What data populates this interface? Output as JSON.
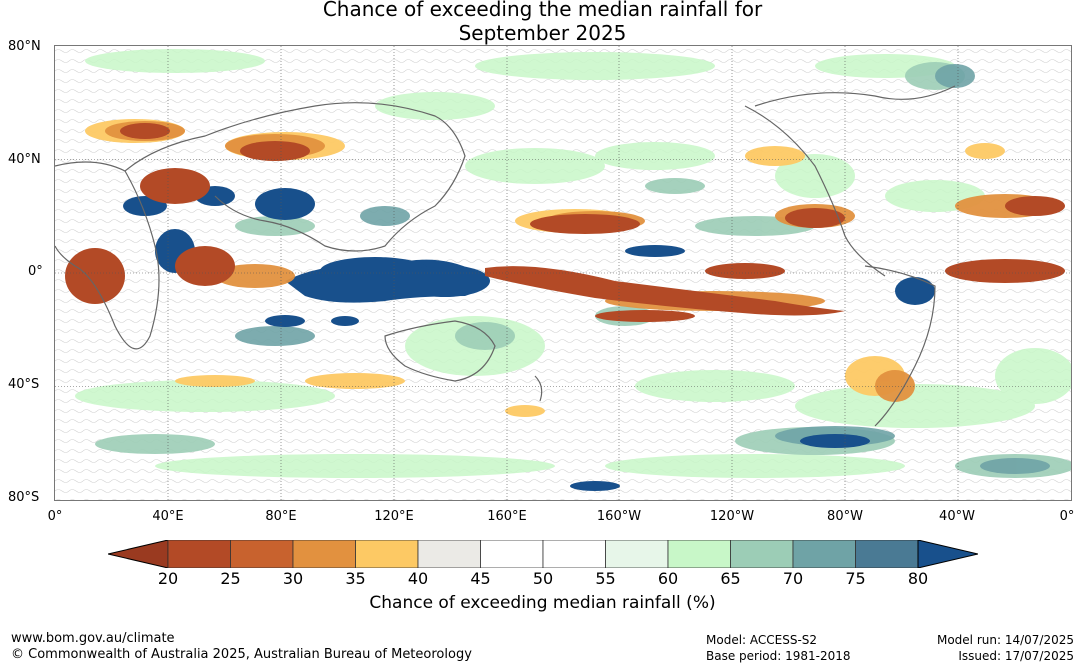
{
  "title": {
    "line1": "Chance of exceeding the median rainfall for",
    "line2": "September 2025"
  },
  "map": {
    "lat_labels": [
      "80°N",
      "40°N",
      "0°",
      "40°S",
      "80°S"
    ],
    "lon_labels": [
      "0°",
      "40°E",
      "80°E",
      "120°E",
      "160°E",
      "160°W",
      "120°W",
      "80°W",
      "40°W",
      "0°"
    ]
  },
  "legend": {
    "ticks": [
      "20",
      "25",
      "30",
      "35",
      "40",
      "45",
      "50",
      "55",
      "60",
      "65",
      "70",
      "75",
      "80"
    ],
    "label": "Chance of exceeding median rainfall (%)",
    "colors": [
      "#9a3a20",
      "#b34a26",
      "#c8622e",
      "#e2913f",
      "#fdc964",
      "#ebeae6",
      "#ffffff",
      "#ffffff",
      "#e7f6e9",
      "#c8f7c8",
      "#9ccdb6",
      "#6fa3a6",
      "#4a7a94",
      "#18508c"
    ],
    "dry_end_color": "#9a3a20",
    "wet_end_color": "#18508c"
  },
  "footer": {
    "website": "www.bom.gov.au/climate",
    "copyright": "© Commonwealth of Australia 2025, Australian Bureau of Meteorology",
    "model": "Model: ACCESS-S2",
    "base_period": "Base period: 1981-2018",
    "model_run": "Model run: 14/07/2025",
    "issued": "Issued: 17/07/2025"
  }
}
